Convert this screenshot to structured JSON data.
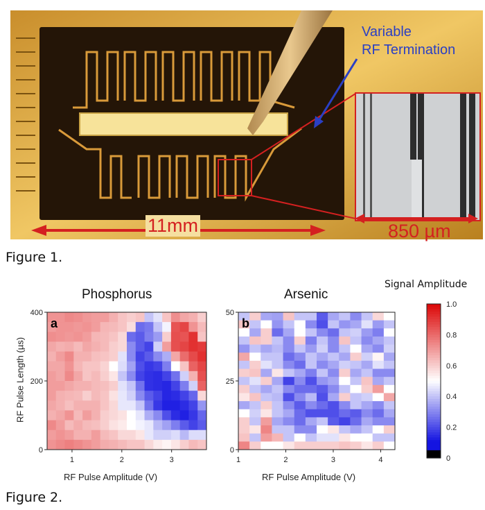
{
  "figure1": {
    "caption": "Figure 1.",
    "annotation_line1": "Variable",
    "annotation_line2": "RF Termination",
    "chip_scale": "11mm",
    "zoom_scale": "850 µm"
  },
  "figure2": {
    "caption": "Figure 2.",
    "colorbar_title": "Signal Amplitude",
    "colorbar_ticks": [
      "1.0",
      "0.8",
      "0.6",
      "0.4",
      "0.2",
      "0"
    ]
  },
  "chart_data": [
    {
      "type": "heatmap",
      "panel": "a",
      "title": "Phosphorus",
      "xlabel": "RF Pulse Amplitude (V)",
      "ylabel": "RF Pulse Length (µs)",
      "x_range": [
        0.5,
        3.7
      ],
      "y_range": [
        0,
        400
      ],
      "x_ticks": [
        "1",
        "2",
        "3"
      ],
      "y_ticks": [
        "0",
        "200",
        "400"
      ],
      "values": [
        [
          0.72,
          0.72,
          0.74,
          0.73,
          0.71,
          0.7,
          0.7,
          0.66,
          0.62,
          0.6,
          0.62,
          0.4,
          0.45,
          0.62,
          0.73,
          0.68,
          0.66,
          0.6
        ],
        [
          0.7,
          0.72,
          0.72,
          0.71,
          0.72,
          0.7,
          0.65,
          0.64,
          0.62,
          0.57,
          0.25,
          0.27,
          0.4,
          0.48,
          0.85,
          0.88,
          0.72,
          0.64
        ],
        [
          0.73,
          0.72,
          0.71,
          0.72,
          0.7,
          0.65,
          0.64,
          0.62,
          0.58,
          0.25,
          0.22,
          0.28,
          0.33,
          0.6,
          0.86,
          0.85,
          0.92,
          0.62
        ],
        [
          0.68,
          0.66,
          0.67,
          0.64,
          0.68,
          0.66,
          0.64,
          0.6,
          0.58,
          0.3,
          0.22,
          0.18,
          0.42,
          0.7,
          0.86,
          0.88,
          0.92,
          0.9
        ],
        [
          0.66,
          0.7,
          0.74,
          0.66,
          0.66,
          0.63,
          0.62,
          0.6,
          0.45,
          0.3,
          0.18,
          0.22,
          0.3,
          0.36,
          0.68,
          0.8,
          0.87,
          0.92
        ],
        [
          0.68,
          0.68,
          0.72,
          0.65,
          0.62,
          0.62,
          0.59,
          0.5,
          0.44,
          0.34,
          0.2,
          0.16,
          0.18,
          0.28,
          0.5,
          0.62,
          0.82,
          0.88
        ],
        [
          0.7,
          0.68,
          0.74,
          0.68,
          0.62,
          0.64,
          0.6,
          0.55,
          0.4,
          0.3,
          0.18,
          0.15,
          0.14,
          0.18,
          0.26,
          0.42,
          0.66,
          0.86
        ],
        [
          0.7,
          0.7,
          0.68,
          0.66,
          0.66,
          0.64,
          0.63,
          0.6,
          0.45,
          0.4,
          0.26,
          0.15,
          0.14,
          0.13,
          0.18,
          0.28,
          0.42,
          0.82
        ],
        [
          0.7,
          0.66,
          0.65,
          0.64,
          0.6,
          0.64,
          0.62,
          0.56,
          0.46,
          0.42,
          0.3,
          0.22,
          0.18,
          0.13,
          0.14,
          0.18,
          0.24,
          0.58
        ],
        [
          0.68,
          0.66,
          0.63,
          0.66,
          0.66,
          0.66,
          0.62,
          0.58,
          0.46,
          0.46,
          0.4,
          0.26,
          0.16,
          0.12,
          0.12,
          0.14,
          0.18,
          0.32
        ],
        [
          0.66,
          0.68,
          0.72,
          0.64,
          0.7,
          0.66,
          0.6,
          0.58,
          0.56,
          0.5,
          0.46,
          0.36,
          0.3,
          0.2,
          0.14,
          0.12,
          0.16,
          0.24
        ],
        [
          0.74,
          0.7,
          0.64,
          0.67,
          0.64,
          0.63,
          0.6,
          0.56,
          0.54,
          0.5,
          0.48,
          0.46,
          0.38,
          0.34,
          0.28,
          0.22,
          0.18,
          0.22
        ],
        [
          0.7,
          0.72,
          0.7,
          0.66,
          0.66,
          0.7,
          0.64,
          0.62,
          0.58,
          0.58,
          0.55,
          0.46,
          0.42,
          0.42,
          0.44,
          0.38,
          0.44,
          0.44
        ],
        [
          0.72,
          0.74,
          0.76,
          0.74,
          0.72,
          0.7,
          0.67,
          0.66,
          0.64,
          0.62,
          0.62,
          0.58,
          0.54,
          0.52,
          0.55,
          0.6,
          0.64,
          0.62
        ]
      ]
    },
    {
      "type": "heatmap",
      "panel": "b",
      "title": "Arsenic",
      "xlabel": "RF Pulse Amplitude (V)",
      "ylabel": "",
      "x_range": [
        1.0,
        4.3
      ],
      "y_range": [
        0,
        50
      ],
      "x_ticks": [
        "1",
        "2",
        "3",
        "4"
      ],
      "y_ticks": [
        "0",
        "25",
        "50"
      ],
      "values": [
        [
          0.4,
          0.6,
          0.35,
          0.34,
          0.62,
          0.4,
          0.4,
          0.22,
          0.35,
          0.4,
          0.3,
          0.4,
          0.58,
          0.5
        ],
        [
          0.62,
          0.4,
          0.5,
          0.32,
          0.4,
          0.5,
          0.3,
          0.2,
          0.4,
          0.32,
          0.35,
          0.45,
          0.33,
          0.4
        ],
        [
          0.5,
          0.35,
          0.6,
          0.25,
          0.35,
          0.5,
          0.4,
          0.3,
          0.25,
          0.4,
          0.42,
          0.33,
          0.28,
          0.5
        ],
        [
          0.4,
          0.62,
          0.6,
          0.4,
          0.3,
          0.6,
          0.28,
          0.4,
          0.3,
          0.62,
          0.4,
          0.3,
          0.35,
          0.4
        ],
        [
          0.32,
          0.4,
          0.35,
          0.38,
          0.3,
          0.4,
          0.33,
          0.42,
          0.3,
          0.4,
          0.5,
          0.35,
          0.3,
          0.42
        ],
        [
          0.68,
          0.5,
          0.4,
          0.4,
          0.25,
          0.3,
          0.4,
          0.35,
          0.4,
          0.35,
          0.6,
          0.42,
          0.52,
          0.35
        ],
        [
          0.4,
          0.6,
          0.45,
          0.4,
          0.3,
          0.25,
          0.4,
          0.3,
          0.35,
          0.42,
          0.4,
          0.35,
          0.45,
          0.4
        ],
        [
          0.6,
          0.62,
          0.35,
          0.55,
          0.4,
          0.35,
          0.28,
          0.4,
          0.3,
          0.6,
          0.35,
          0.4,
          0.3,
          0.3
        ],
        [
          0.4,
          0.45,
          0.6,
          0.35,
          0.18,
          0.3,
          0.2,
          0.32,
          0.35,
          0.5,
          0.4,
          0.62,
          0.35,
          0.4
        ],
        [
          0.6,
          0.4,
          0.35,
          0.4,
          0.3,
          0.25,
          0.25,
          0.22,
          0.3,
          0.4,
          0.5,
          0.6,
          0.7,
          0.5
        ],
        [
          0.55,
          0.62,
          0.4,
          0.38,
          0.2,
          0.3,
          0.38,
          0.2,
          0.35,
          0.6,
          0.4,
          0.42,
          0.5,
          0.68
        ],
        [
          0.35,
          0.4,
          0.6,
          0.4,
          0.3,
          0.22,
          0.3,
          0.25,
          0.2,
          0.3,
          0.4,
          0.35,
          0.3,
          0.4
        ],
        [
          0.5,
          0.42,
          0.55,
          0.4,
          0.35,
          0.25,
          0.2,
          0.2,
          0.2,
          0.25,
          0.22,
          0.3,
          0.25,
          0.35
        ],
        [
          0.6,
          0.4,
          0.7,
          0.35,
          0.3,
          0.25,
          0.35,
          0.4,
          0.22,
          0.18,
          0.25,
          0.35,
          0.3,
          0.3
        ],
        [
          0.6,
          0.55,
          0.75,
          0.4,
          0.4,
          0.3,
          0.3,
          0.5,
          0.55,
          0.4,
          0.35,
          0.4,
          0.5,
          0.6
        ],
        [
          0.62,
          0.4,
          0.7,
          0.65,
          0.4,
          0.5,
          0.4,
          0.45,
          0.45,
          0.55,
          0.5,
          0.5,
          0.4,
          0.4
        ],
        [
          0.75,
          0.6,
          0.5,
          0.5,
          0.55,
          0.6,
          0.6,
          0.6,
          0.6,
          0.62,
          0.6,
          0.55,
          0.6,
          0.5
        ]
      ]
    }
  ]
}
